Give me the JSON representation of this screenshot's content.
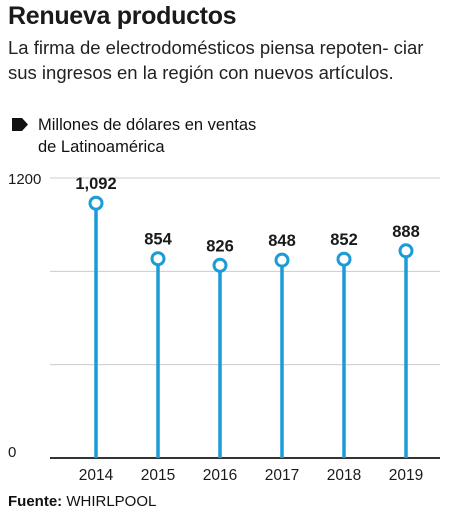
{
  "header": {
    "title": "Renueva productos",
    "subtitle": "La firma de electrodomésticos piensa repoten- ciar sus ingresos en la región con nuevos artículos."
  },
  "legend": {
    "line1": "Millones de dólares en ventas",
    "line2": "de Latinoamérica"
  },
  "footer": {
    "source_label": "Fuente:",
    "source_value": "WHIRLPOOL"
  },
  "colors": {
    "series": "#1b9bd7",
    "grid": "#cccccc",
    "axis": "#333333",
    "text": "#1a1a1a"
  },
  "chart_data": {
    "type": "lollipop",
    "categories": [
      "2014",
      "2015",
      "2016",
      "2017",
      "2018",
      "2019"
    ],
    "values": [
      1092,
      854,
      826,
      848,
      852,
      888
    ],
    "value_labels": [
      "1,092",
      "854",
      "826",
      "848",
      "852",
      "888"
    ],
    "y_ticks_labeled": [
      "1200",
      "0"
    ],
    "ylim": [
      0,
      1200
    ],
    "gridlines": [
      0,
      400,
      800,
      1200
    ]
  }
}
